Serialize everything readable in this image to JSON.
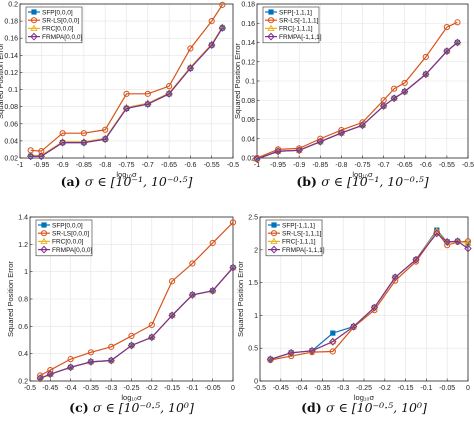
{
  "chart_data": [
    {
      "type": "line",
      "caption": {
        "label": "(a)",
        "text": "σ ∈ [10⁻¹, 10⁻⁰·⁵]"
      },
      "xlabel": "log₁₀σ",
      "ylabel": "Squared Position Error",
      "xlim": [
        -1,
        -0.5
      ],
      "ylim": [
        0.02,
        0.2
      ],
      "xticks": [
        -1,
        -0.95,
        -0.9,
        -0.85,
        -0.8,
        -0.75,
        -0.7,
        -0.65,
        -0.6,
        -0.55,
        -0.5
      ],
      "xtick_labels": [
        "-1",
        "-0.95",
        "-0.9",
        "-0.85",
        "-0.8",
        "-0.75",
        "-0.7",
        "-0.65",
        "-0.6",
        "-0.55",
        "-0.5"
      ],
      "yticks": [
        0.02,
        0.04,
        0.06,
        0.08,
        0.1,
        0.12,
        0.14,
        0.16,
        0.18,
        0.2
      ],
      "ytick_labels": [
        "0.02",
        "0.04",
        "0.06",
        "0.08",
        "0.1",
        "0.12",
        "0.14",
        "0.16",
        "0.18",
        "0.2"
      ],
      "grid": true,
      "legend_position": "top-left",
      "x": [
        -0.975,
        -0.95,
        -0.9,
        -0.85,
        -0.8,
        -0.75,
        -0.7,
        -0.65,
        -0.6,
        -0.55,
        -0.525
      ],
      "series": [
        {
          "name": "SFP[0,0,0]",
          "color": "#0072BD",
          "marker": "square",
          "values": [
            0.022,
            0.022,
            0.038,
            0.038,
            0.042,
            0.078,
            0.083,
            0.095,
            0.125,
            0.152,
            0.172
          ]
        },
        {
          "name": "SR-LS[0,0,0]",
          "color": "#D95319",
          "marker": "circle",
          "values": [
            0.029,
            0.028,
            0.049,
            0.049,
            0.053,
            0.095,
            0.095,
            0.104,
            0.148,
            0.18,
            0.199
          ]
        },
        {
          "name": "FRC[0,0,0]",
          "color": "#EDB120",
          "marker": "triangle",
          "values": [
            0.023,
            0.023,
            0.039,
            0.039,
            0.043,
            0.079,
            0.084,
            0.096,
            0.126,
            0.153,
            0.173
          ]
        },
        {
          "name": "FRMPA[0,0,0]",
          "color": "#7E2F8E",
          "marker": "diamond",
          "values": [
            0.022,
            0.022,
            0.038,
            0.038,
            0.042,
            0.078,
            0.083,
            0.095,
            0.125,
            0.152,
            0.172
          ]
        }
      ]
    },
    {
      "type": "line",
      "caption": {
        "label": "(b)",
        "text": "σ ∈ [10⁻¹, 10⁻⁰·⁵]"
      },
      "xlabel": "log₁₀σ",
      "ylabel": "Squared Position Error",
      "xlim": [
        -1,
        -0.5
      ],
      "ylim": [
        0.02,
        0.18
      ],
      "xticks": [
        -1,
        -0.95,
        -0.9,
        -0.85,
        -0.8,
        -0.75,
        -0.7,
        -0.65,
        -0.6,
        -0.55,
        -0.5
      ],
      "xtick_labels": [
        "-1",
        "-0.95",
        "-0.9",
        "-0.85",
        "-0.8",
        "-0.75",
        "-0.7",
        "-0.65",
        "-0.6",
        "-0.55",
        "-0.5"
      ],
      "yticks": [
        0.02,
        0.04,
        0.06,
        0.08,
        0.1,
        0.12,
        0.14,
        0.16,
        0.18
      ],
      "ytick_labels": [
        "0.02",
        "0.04",
        "0.06",
        "0.08",
        "0.1",
        "0.12",
        "0.14",
        "0.16",
        "0.18"
      ],
      "grid": true,
      "legend_position": "top-left",
      "x": [
        -1,
        -0.95,
        -0.9,
        -0.85,
        -0.8,
        -0.75,
        -0.7,
        -0.675,
        -0.65,
        -0.6,
        -0.55,
        -0.525
      ],
      "series": [
        {
          "name": "SFP[-1,1,1]",
          "color": "#0072BD",
          "marker": "square",
          "values": [
            0.019,
            0.027,
            0.028,
            0.037,
            0.046,
            0.054,
            0.074,
            0.082,
            0.089,
            0.107,
            0.131,
            0.14
          ]
        },
        {
          "name": "SR-LS[-1,1,1]",
          "color": "#D95319",
          "marker": "circle",
          "values": [
            0.02,
            0.029,
            0.03,
            0.04,
            0.049,
            0.057,
            0.08,
            0.092,
            0.098,
            0.125,
            0.156,
            0.161
          ]
        },
        {
          "name": "FRC[-1,1,1]",
          "color": "#EDB120",
          "marker": "triangle",
          "values": [
            0.019,
            0.027,
            0.028,
            0.037,
            0.046,
            0.054,
            0.074,
            0.082,
            0.089,
            0.107,
            0.131,
            0.14
          ]
        },
        {
          "name": "FRMPA[-1,1,1]",
          "color": "#7E2F8E",
          "marker": "diamond",
          "values": [
            0.019,
            0.027,
            0.028,
            0.037,
            0.046,
            0.054,
            0.074,
            0.082,
            0.089,
            0.107,
            0.131,
            0.14
          ]
        }
      ]
    },
    {
      "type": "line",
      "caption": {
        "label": "(c)",
        "text": "σ ∈ [10⁻⁰·⁵, 10⁰]"
      },
      "xlabel": "log₁₀σ",
      "ylabel": "Squared Position Error",
      "xlim": [
        -0.5,
        0
      ],
      "ylim": [
        0.2,
        1.4
      ],
      "xticks": [
        -0.5,
        -0.45,
        -0.4,
        -0.35,
        -0.3,
        -0.25,
        -0.2,
        -0.15,
        -0.1,
        -0.05,
        0
      ],
      "xtick_labels": [
        "-0.5",
        "-0.45",
        "-0.4",
        "-0.35",
        "-0.3",
        "-0.25",
        "-0.2",
        "-0.15",
        "-0.1",
        "-0.05",
        "0"
      ],
      "yticks": [
        0.2,
        0.4,
        0.6,
        0.8,
        1,
        1.2,
        1.4
      ],
      "ytick_labels": [
        "0.2",
        "0.4",
        "0.6",
        "0.8",
        "1",
        "1.2",
        "1.4"
      ],
      "grid": true,
      "legend_position": "top-left",
      "x": [
        -0.475,
        -0.45,
        -0.4,
        -0.35,
        -0.3,
        -0.25,
        -0.2,
        -0.15,
        -0.1,
        -0.05,
        0
      ],
      "series": [
        {
          "name": "SFP[0,0,0]",
          "color": "#0072BD",
          "marker": "square",
          "values": [
            0.22,
            0.25,
            0.3,
            0.34,
            0.35,
            0.46,
            0.52,
            0.68,
            0.83,
            0.86,
            1.03
          ]
        },
        {
          "name": "SR-LS[0,0,0]",
          "color": "#D95319",
          "marker": "circle",
          "values": [
            0.24,
            0.28,
            0.36,
            0.41,
            0.45,
            0.53,
            0.61,
            0.93,
            1.06,
            1.21,
            1.36
          ]
        },
        {
          "name": "FRC[0,0,0]",
          "color": "#EDB120",
          "marker": "triangle",
          "values": [
            0.22,
            0.25,
            0.3,
            0.34,
            0.35,
            0.46,
            0.52,
            0.68,
            0.83,
            0.86,
            1.03
          ]
        },
        {
          "name": "FRMPA[0,0,0]",
          "color": "#7E2F8E",
          "marker": "diamond",
          "values": [
            0.22,
            0.25,
            0.3,
            0.34,
            0.35,
            0.46,
            0.52,
            0.68,
            0.83,
            0.86,
            1.03
          ]
        }
      ]
    },
    {
      "type": "line",
      "caption": {
        "label": "(d)",
        "text": "σ ∈ [10⁻⁰·⁵, 10⁰]"
      },
      "xlabel": "log₁₀σ",
      "ylabel": "Squared Position Error",
      "xlim": [
        -0.5,
        0
      ],
      "ylim": [
        0,
        2.5
      ],
      "xticks": [
        -0.5,
        -0.45,
        -0.4,
        -0.35,
        -0.3,
        -0.25,
        -0.2,
        -0.15,
        -0.1,
        -0.05,
        0
      ],
      "xtick_labels": [
        "-0.5",
        "-0.45",
        "-0.4",
        "-0.35",
        "-0.3",
        "-0.25",
        "-0.2",
        "-0.15",
        "-0.1",
        "-0.05",
        "0"
      ],
      "yticks": [
        0,
        0.5,
        1,
        1.5,
        2,
        2.5
      ],
      "ytick_labels": [
        "0",
        "0.5",
        "1",
        "1.5",
        "2",
        "2.5"
      ],
      "grid": true,
      "legend_position": "top-left",
      "x": [
        -0.475,
        -0.425,
        -0.375,
        -0.325,
        -0.275,
        -0.225,
        -0.175,
        -0.125,
        -0.075,
        -0.05,
        -0.025,
        0
      ],
      "series": [
        {
          "name": "SFP[-1,1,1]",
          "color": "#0072BD",
          "marker": "square",
          "values": [
            0.33,
            0.43,
            0.46,
            0.73,
            0.83,
            1.12,
            1.58,
            1.85,
            2.3,
            2.12,
            2.13,
            2.1
          ]
        },
        {
          "name": "SR-LS[-1,1,1]",
          "color": "#D95319",
          "marker": "circle",
          "values": [
            0.32,
            0.38,
            0.44,
            0.45,
            0.82,
            1.08,
            1.53,
            1.82,
            2.27,
            2.07,
            2.12,
            2.13
          ]
        },
        {
          "name": "FRC[-1,1,1]",
          "color": "#EDB120",
          "marker": "triangle",
          "values": [
            0.33,
            0.43,
            0.46,
            0.6,
            0.83,
            1.12,
            1.58,
            1.85,
            2.28,
            2.12,
            2.13,
            2.1
          ]
        },
        {
          "name": "FRMPA[-1,1,1]",
          "color": "#7E2F8E",
          "marker": "diamond",
          "values": [
            0.33,
            0.43,
            0.46,
            0.6,
            0.83,
            1.12,
            1.58,
            1.85,
            2.25,
            2.12,
            2.13,
            2.02
          ]
        }
      ]
    }
  ]
}
